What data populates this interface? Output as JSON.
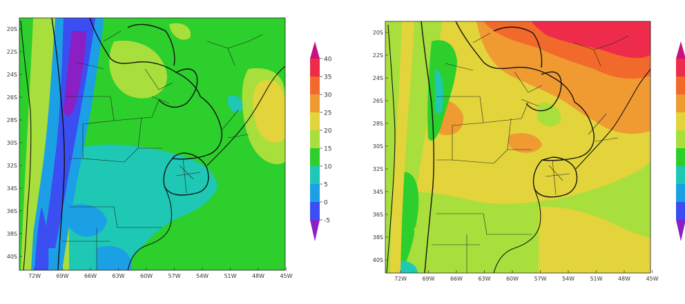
{
  "maps": [
    {
      "id": "left",
      "lat_labels": [
        "20S",
        "22S",
        "24S",
        "26S",
        "28S",
        "30S",
        "32S",
        "34S",
        "36S",
        "38S",
        "40S"
      ],
      "lon_labels": [
        "72W",
        "69W",
        "66W",
        "63W",
        "60W",
        "57W",
        "54W",
        "51W",
        "48W",
        "45W"
      ]
    },
    {
      "id": "right",
      "lat_labels": [
        "20S",
        "22S",
        "24S",
        "26S",
        "28S",
        "30S",
        "32S",
        "34S",
        "36S",
        "38S",
        "40S"
      ],
      "lon_labels": [
        "72W",
        "69W",
        "66W",
        "63W",
        "60W",
        "57W",
        "54W",
        "51W",
        "48W",
        "45W"
      ]
    }
  ],
  "colorbar": {
    "labels": [
      "40",
      "35",
      "30",
      "25",
      "20",
      "15",
      "10",
      "5",
      "0",
      "-5"
    ],
    "colors": {
      "above_40": "#c8107e",
      "35_40": "#ef2b4c",
      "30_35": "#f26a2b",
      "25_30": "#f09a32",
      "20_25": "#e2d43a",
      "15_20": "#a8df3c",
      "10_15": "#2ccf2c",
      "5_10": "#1ec8b4",
      "0_5": "#1ba0e6",
      "minus5_0": "#3a4ef2",
      "below_minus5": "#8a1fc4"
    }
  }
}
